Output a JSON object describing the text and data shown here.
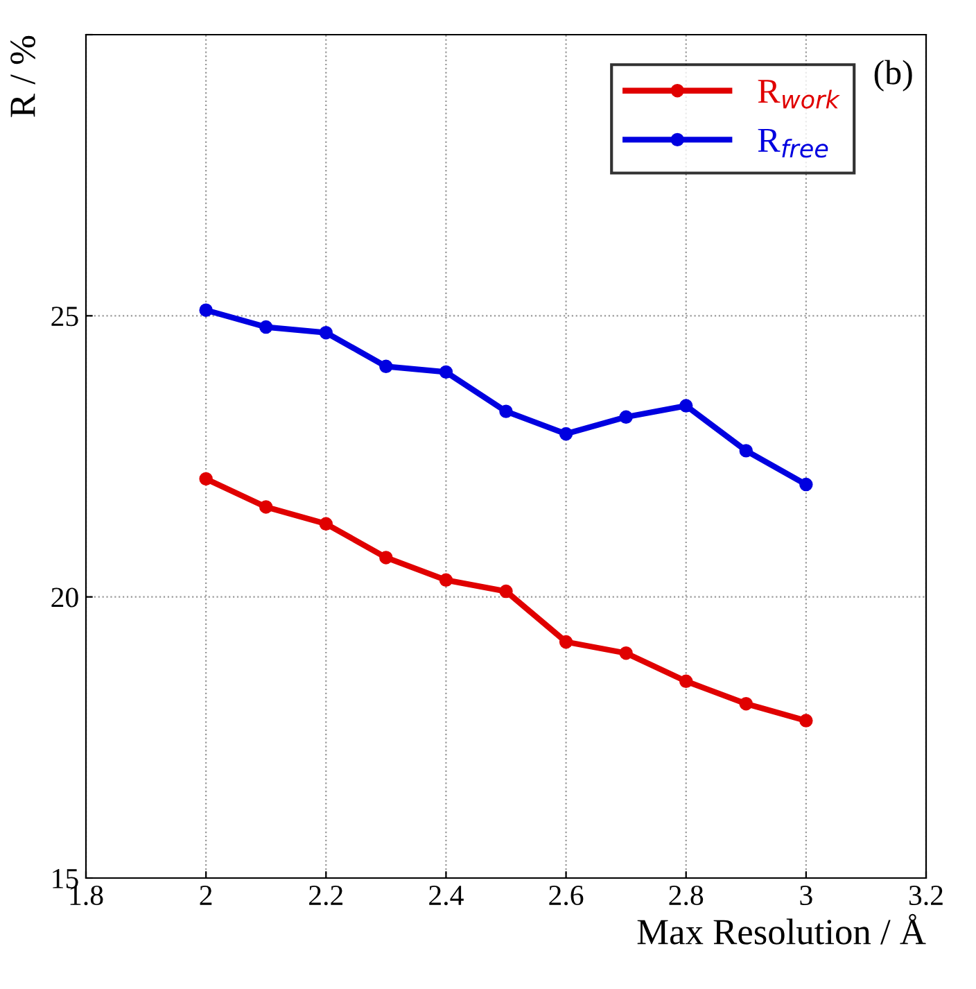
{
  "chart_data": {
    "type": "line",
    "xlabel": "Max Resolution / Å",
    "ylabel": "R / %",
    "annotations": [
      "(b)"
    ],
    "x": [
      2.0,
      2.1,
      2.2,
      2.3,
      2.4,
      2.5,
      2.6,
      2.7,
      2.8,
      2.9,
      3.0
    ],
    "series": [
      {
        "name": "R$_{work}$",
        "color": "#e00000",
        "values": [
          22.1,
          21.6,
          21.3,
          20.7,
          20.3,
          20.1,
          19.2,
          19.0,
          18.5,
          18.1,
          17.8
        ]
      },
      {
        "name": "R$_{free}$",
        "color": "#0000e0",
        "values": [
          25.1,
          24.8,
          24.7,
          24.1,
          24.0,
          23.3,
          22.9,
          23.2,
          23.4,
          22.6,
          22.0
        ]
      }
    ],
    "xlim": [
      1.8,
      3.2
    ],
    "xticks": [
      1.8,
      2,
      2.2,
      2.4,
      2.6,
      2.8,
      3,
      3.2
    ],
    "ylim": [
      15,
      30
    ],
    "yticks": [
      15,
      20,
      25,
      {
        "value": 30,
        "label": null
      }
    ],
    "grid": true,
    "legend": "top right",
    "marker": "circle",
    "line_style": "solid"
  }
}
